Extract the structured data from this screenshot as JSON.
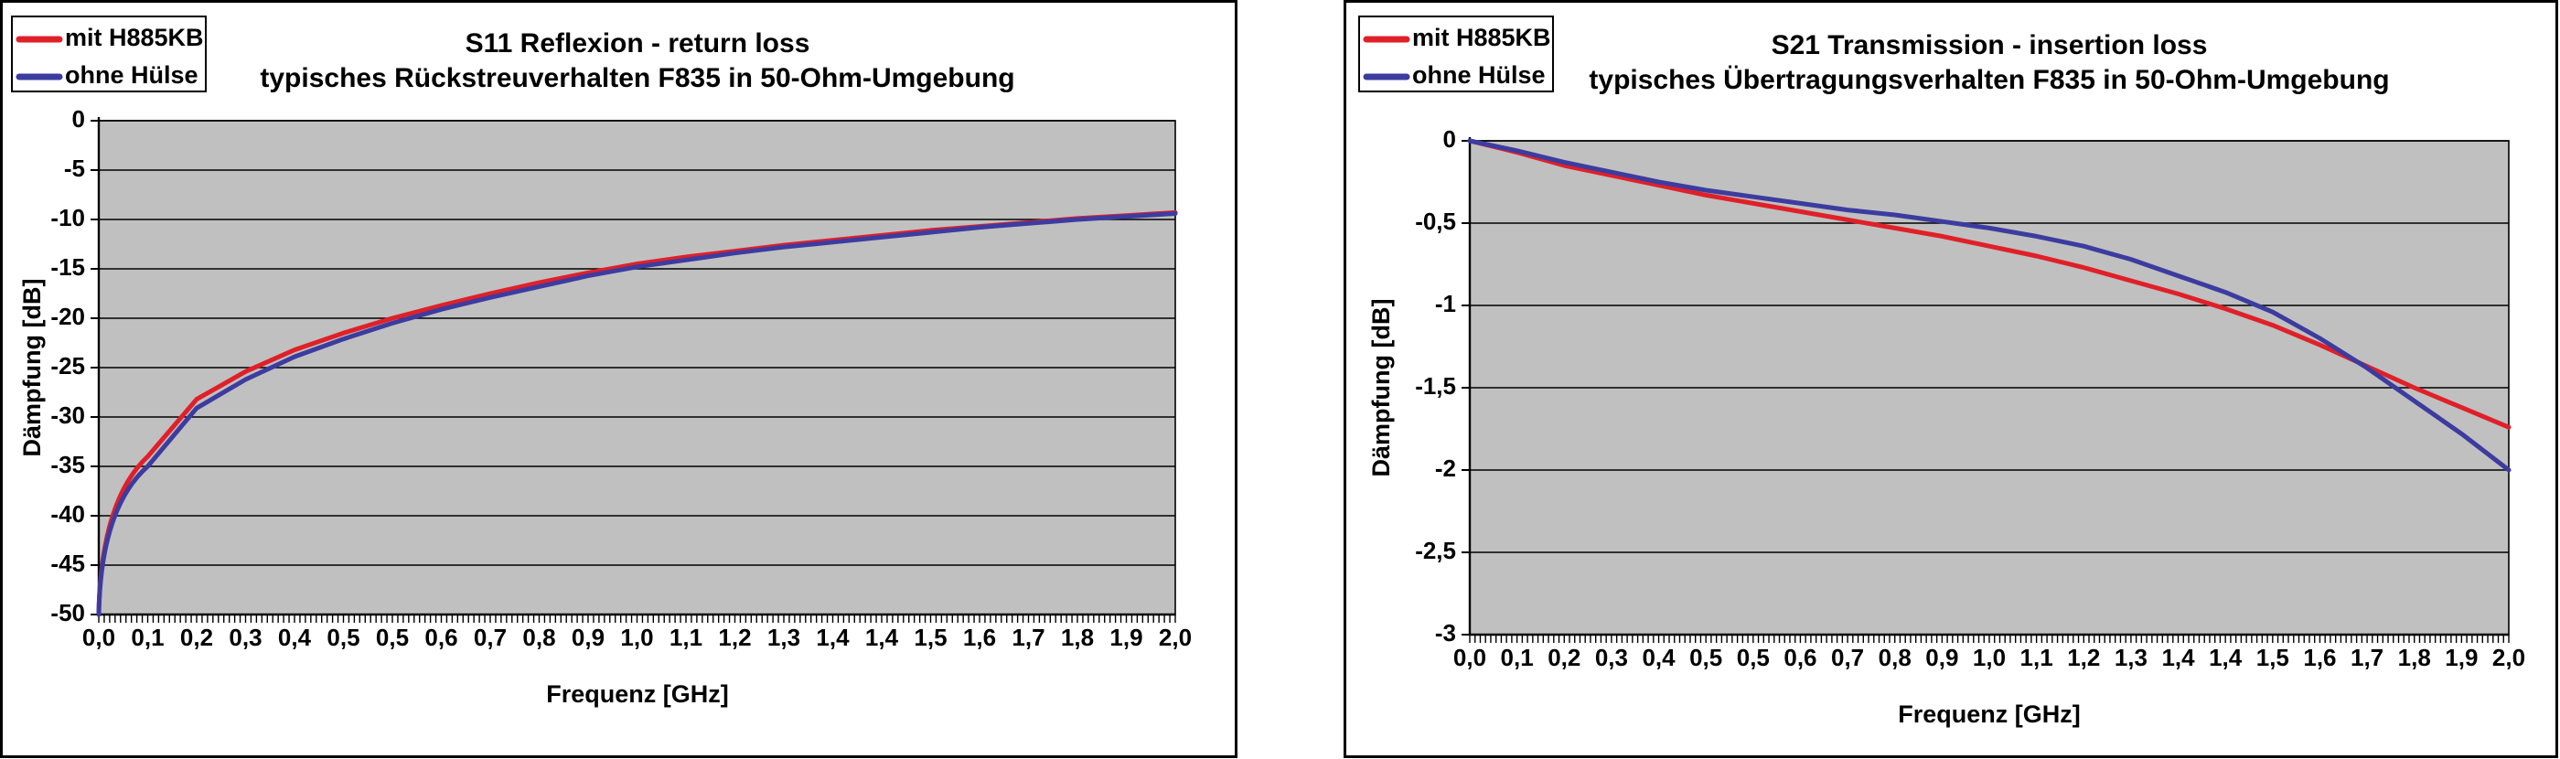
{
  "colors": {
    "plot_bg": "#c0c0c0",
    "grid": "#000000",
    "panel_border": "#000000",
    "series_red": "#e02028",
    "series_blue": "#3c3ca0",
    "text": "#000000",
    "page_bg": "#ffffff"
  },
  "chart_data": [
    {
      "type": "line",
      "id": "s11",
      "title": "S11 Reflexion - return loss",
      "subtitle": "typisches Rückstreuverhalten F835 in 50-Ohm-Umgebung",
      "xlabel": "Frequenz [GHz]",
      "ylabel": "Dämpfung [dB]",
      "legend_position": "top-left",
      "grid": "horizontal",
      "ylim": [
        -50,
        0
      ],
      "y_tick_labels": [
        "0",
        "-5",
        "-10",
        "-15",
        "-20",
        "-25",
        "-30",
        "-35",
        "-40",
        "-45",
        "-50"
      ],
      "y_tick_values": [
        0,
        -5,
        -10,
        -15,
        -20,
        -25,
        -30,
        -35,
        -40,
        -45,
        -50
      ],
      "x_tick_labels": [
        "0,0",
        "0,1",
        "0,2",
        "0,3",
        "0,4",
        "0,5",
        "0,5",
        "0,6",
        "0,7",
        "0,8",
        "0,9",
        "1,0",
        "1,1",
        "1,2",
        "1,3",
        "1,4",
        "1,4",
        "1,5",
        "1,6",
        "1,7",
        "1,8",
        "1,9",
        "2,0"
      ],
      "series": [
        {
          "name": "mit H885KB",
          "color_key": "series_red",
          "values": [
            -50,
            -34.0,
            -28.2,
            -25.4,
            -23.2,
            -21.5,
            -20.0,
            -18.7,
            -17.5,
            -16.4,
            -15.4,
            -14.5,
            -13.8,
            -13.2,
            -12.6,
            -12.1,
            -11.6,
            -11.1,
            -10.7,
            -10.3,
            -9.9,
            -9.6,
            -9.3
          ]
        },
        {
          "name": "ohne Hülse",
          "color_key": "series_blue",
          "values": [
            -50,
            -35.0,
            -29.1,
            -26.2,
            -23.9,
            -22.1,
            -20.5,
            -19.1,
            -17.9,
            -16.8,
            -15.7,
            -14.8,
            -14.1,
            -13.4,
            -12.8,
            -12.3,
            -11.8,
            -11.3,
            -10.8,
            -10.4,
            -10.0,
            -9.7,
            -9.4
          ]
        }
      ]
    },
    {
      "type": "line",
      "id": "s21",
      "title": "S21 Transmission - insertion loss",
      "subtitle": "typisches Übertragungsverhalten F835 in 50-Ohm-Umgebung",
      "xlabel": "Frequenz [GHz]",
      "ylabel": "Dämpfung [dB]",
      "legend_position": "top-left",
      "grid": "horizontal",
      "ylim": [
        -3,
        0
      ],
      "y_tick_labels": [
        "0",
        "-0,5",
        "-1",
        "-1,5",
        "-2",
        "-2,5",
        "-3"
      ],
      "y_tick_values": [
        0,
        -0.5,
        -1,
        -1.5,
        -2,
        -2.5,
        -3
      ],
      "x_tick_labels": [
        "0,0",
        "0,1",
        "0,2",
        "0,3",
        "0,4",
        "0,5",
        "0,5",
        "0,6",
        "0,7",
        "0,8",
        "0,9",
        "1,0",
        "1,1",
        "1,2",
        "1,3",
        "1,4",
        "1,4",
        "1,5",
        "1,6",
        "1,7",
        "1,8",
        "1,9",
        "2,0"
      ],
      "series": [
        {
          "name": "mit H885KB",
          "color_key": "series_red",
          "values": [
            0,
            -0.07,
            -0.15,
            -0.21,
            -0.27,
            -0.33,
            -0.38,
            -0.43,
            -0.48,
            -0.53,
            -0.58,
            -0.64,
            -0.7,
            -0.77,
            -0.85,
            -0.93,
            -1.02,
            -1.12,
            -1.24,
            -1.37,
            -1.5,
            -1.62,
            -1.74
          ]
        },
        {
          "name": "ohne Hülse",
          "color_key": "series_blue",
          "values": [
            0,
            -0.06,
            -0.13,
            -0.19,
            -0.25,
            -0.3,
            -0.34,
            -0.38,
            -0.42,
            -0.45,
            -0.49,
            -0.53,
            -0.58,
            -0.64,
            -0.72,
            -0.82,
            -0.92,
            -1.04,
            -1.2,
            -1.38,
            -1.58,
            -1.78,
            -2.0
          ]
        }
      ]
    }
  ]
}
